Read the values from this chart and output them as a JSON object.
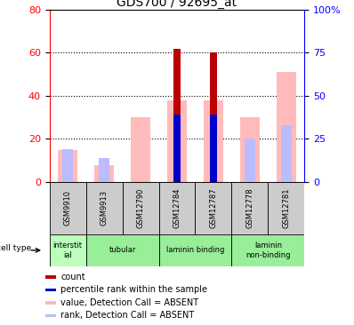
{
  "title": "GDS700 / 92695_at",
  "samples": [
    "GSM9910",
    "GSM9913",
    "GSM12790",
    "GSM12784",
    "GSM12787",
    "GSM12778",
    "GSM12781"
  ],
  "count_values": [
    0,
    0,
    0,
    62,
    60,
    0,
    0
  ],
  "rank_values": [
    0,
    0,
    0,
    39,
    39,
    0,
    0
  ],
  "absent_value_values": [
    15,
    8,
    30,
    38,
    38,
    30,
    51
  ],
  "absent_rank_values": [
    19,
    14,
    0,
    0,
    0,
    25,
    33
  ],
  "cell_type_groups": [
    {
      "label": "interstit\nial",
      "start": 0,
      "end": 1,
      "color": "#bbffbb"
    },
    {
      "label": "tubular",
      "start": 1,
      "end": 3,
      "color": "#99ee99"
    },
    {
      "label": "laminin binding",
      "start": 3,
      "end": 5,
      "color": "#99ee99"
    },
    {
      "label": "laminin\nnon-binding",
      "start": 5,
      "end": 7,
      "color": "#99ee99"
    }
  ],
  "ylim_left": [
    0,
    80
  ],
  "ylim_right": [
    0,
    100
  ],
  "yticks_left": [
    0,
    20,
    40,
    60,
    80
  ],
  "ytick_labels_right": [
    "0",
    "25",
    "50",
    "75",
    "100%"
  ],
  "yticks_right": [
    0,
    25,
    50,
    75,
    100
  ],
  "color_count": "#bb0000",
  "color_rank": "#0000cc",
  "color_absent_value": "#ffbbbb",
  "color_absent_rank": "#bbbbff",
  "title_fontsize": 10,
  "tick_fontsize": 7,
  "label_fontsize": 6,
  "legend_fontsize": 7
}
